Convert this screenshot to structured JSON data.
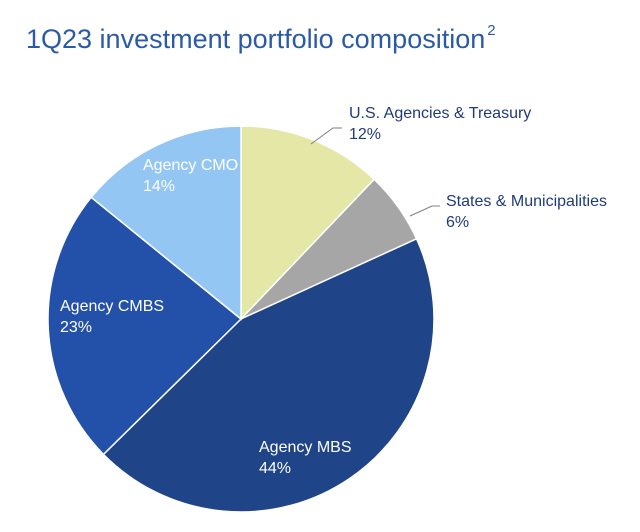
{
  "title": "1Q23 investment portfolio composition",
  "title_superscript": "2",
  "chart_data": {
    "type": "pie",
    "title": "1Q23 investment portfolio composition",
    "slices": [
      {
        "name": "U.S. Agencies & Treasury",
        "value": 12,
        "label": "12%",
        "color": "#e5e7a7",
        "label_color": "#1f3b7a"
      },
      {
        "name": "States & Municipalities",
        "value": 6,
        "label": "6%",
        "color": "#a6a6a6",
        "label_color": "#1f3b7a"
      },
      {
        "name": "Agency MBS",
        "value": 44,
        "label": "44%",
        "color": "#1f4488",
        "label_color": "#ffffff"
      },
      {
        "name": "Agency CMBS",
        "value": 23,
        "label": "23%",
        "color": "#2350a9",
        "label_color": "#ffffff"
      },
      {
        "name": "Agency CMO",
        "value": 14,
        "label": "14%",
        "color": "#94c6f4",
        "label_color": "#ffffff"
      }
    ],
    "start_angle_deg": 0,
    "direction": "clockwise",
    "legend": "none",
    "data_labels": "outside for small slices with leader lines, inside otherwise"
  }
}
